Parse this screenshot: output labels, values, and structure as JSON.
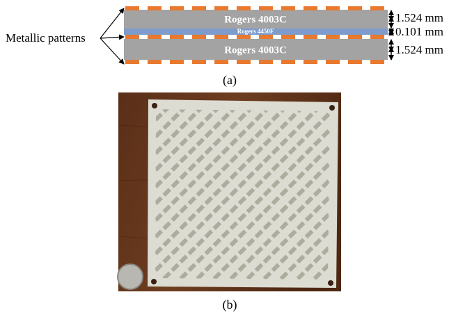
{
  "figure_a": {
    "annotation": "Metallic patterns",
    "layers": [
      {
        "label": "Rogers 4003C",
        "thickness": "1.524 mm"
      },
      {
        "label": "Rogers 4450F",
        "thickness": "0.101 mm"
      },
      {
        "label": "Rogers 4003C",
        "thickness": "1.524 mm"
      }
    ],
    "caption": "(a)"
  },
  "figure_b": {
    "caption": "(b)"
  }
}
